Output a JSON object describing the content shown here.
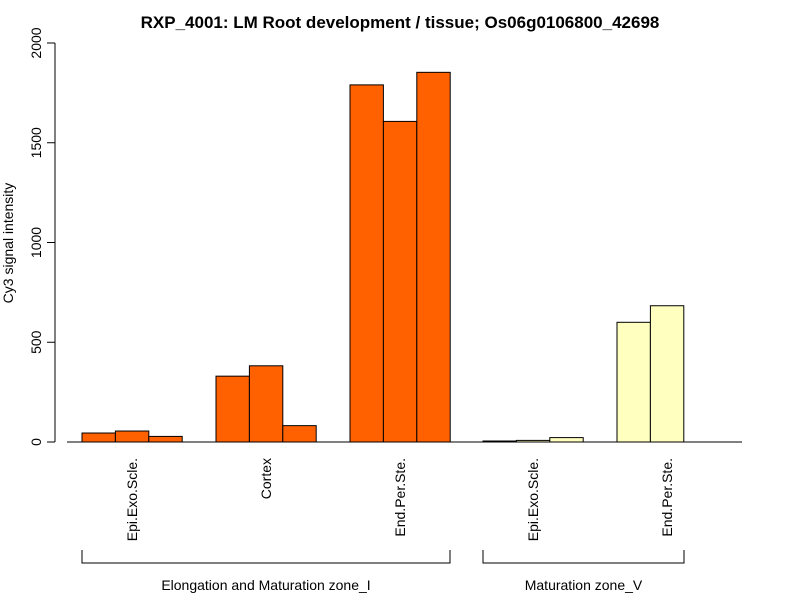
{
  "chart_data": {
    "type": "bar",
    "title": "RXP_4001: LM Root development / tissue; Os06g0106800_42698",
    "ylabel": "Cy3 signal intensity",
    "xlabel": "",
    "ylim": [
      0,
      2000
    ],
    "yticks": [
      0,
      500,
      1000,
      1500,
      2000
    ],
    "grid": false,
    "categories": [
      {
        "label": "Epi.Exo.Scle.",
        "group": 0,
        "color": "#FF6000",
        "values": [
          45,
          55,
          28
        ]
      },
      {
        "label": "Cortex",
        "group": 0,
        "color": "#FF6000",
        "values": [
          330,
          382,
          82
        ]
      },
      {
        "label": "End.Per.Ste.",
        "group": 0,
        "color": "#FF6000",
        "values": [
          1790,
          1607,
          1853
        ]
      },
      {
        "label": "Epi.Exo.Scle.",
        "group": 1,
        "color": "#FFFFC0",
        "values": [
          5,
          8,
          22
        ]
      },
      {
        "label": "End.Per.Ste.",
        "group": 1,
        "color": "#FFFFC0",
        "values": [
          600,
          683
        ]
      }
    ],
    "groups": [
      {
        "label": "Elongation and Maturation zone_I"
      },
      {
        "label": "Maturation zone_V"
      }
    ]
  }
}
